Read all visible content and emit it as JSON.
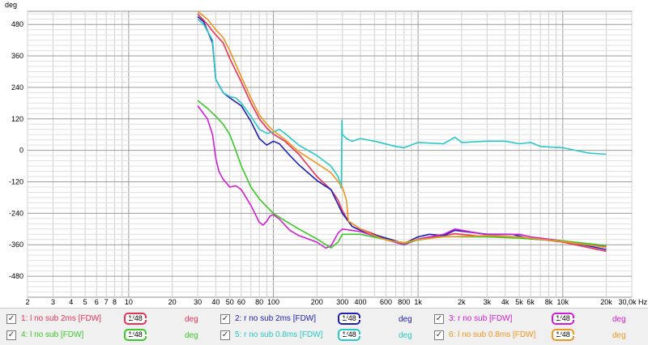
{
  "chart_data": {
    "type": "line",
    "ylabel": "deg",
    "xunit": "Hz",
    "xscale": "log",
    "xlim": [
      2,
      30000
    ],
    "ylim": [
      -560,
      530
    ],
    "yticks": [
      480,
      360,
      240,
      120,
      0,
      -120,
      -240,
      -360,
      -480
    ],
    "xticks": [
      {
        "v": 2,
        "label": "2"
      },
      {
        "v": 3,
        "label": "3"
      },
      {
        "v": 4,
        "label": "4"
      },
      {
        "v": 5,
        "label": "5"
      },
      {
        "v": 6,
        "label": "6"
      },
      {
        "v": 7,
        "label": "7"
      },
      {
        "v": 8,
        "label": "8"
      },
      {
        "v": 10,
        "label": "10"
      },
      {
        "v": 20,
        "label": "20"
      },
      {
        "v": 30,
        "label": "30"
      },
      {
        "v": 40,
        "label": "40"
      },
      {
        "v": 50,
        "label": "50"
      },
      {
        "v": 60,
        "label": "60"
      },
      {
        "v": 80,
        "label": "80"
      },
      {
        "v": 100,
        "label": "100"
      },
      {
        "v": 200,
        "label": "200"
      },
      {
        "v": 300,
        "label": "300"
      },
      {
        "v": 400,
        "label": "400"
      },
      {
        "v": 600,
        "label": "600"
      },
      {
        "v": 800,
        "label": "800"
      },
      {
        "v": 1000,
        "label": "1k"
      },
      {
        "v": 2000,
        "label": "2k"
      },
      {
        "v": 3000,
        "label": "3k"
      },
      {
        "v": 4000,
        "label": "4k"
      },
      {
        "v": 5000,
        "label": "5k"
      },
      {
        "v": 6000,
        "label": "6k"
      },
      {
        "v": 8000,
        "label": "8k"
      },
      {
        "v": 10000,
        "label": "10k"
      },
      {
        "v": 20000,
        "label": "20k"
      },
      {
        "v": 30000,
        "label": "30,0k Hz"
      }
    ],
    "grid": true,
    "series": [
      {
        "name": "1: l no sub 2ms [FDW]",
        "color": "#e8325a",
        "points": [
          [
            30,
            520
          ],
          [
            35,
            480
          ],
          [
            40,
            440
          ],
          [
            45,
            410
          ],
          [
            50,
            350
          ],
          [
            60,
            260
          ],
          [
            70,
            180
          ],
          [
            80,
            120
          ],
          [
            90,
            85
          ],
          [
            100,
            62
          ],
          [
            120,
            35
          ],
          [
            150,
            -15
          ],
          [
            200,
            -100
          ],
          [
            250,
            -150
          ],
          [
            280,
            -190
          ],
          [
            300,
            -230
          ],
          [
            330,
            -270
          ],
          [
            400,
            -300
          ],
          [
            500,
            -320
          ],
          [
            600,
            -340
          ],
          [
            800,
            -360
          ],
          [
            1000,
            -340
          ],
          [
            1500,
            -325
          ],
          [
            1800,
            -318
          ],
          [
            3000,
            -330
          ],
          [
            5000,
            -330
          ],
          [
            10000,
            -350
          ],
          [
            20000,
            -385
          ]
        ]
      },
      {
        "name": "2: r no sub 2ms [FDW]",
        "color": "#1e1eb4",
        "points": [
          [
            30,
            510
          ],
          [
            33,
            490
          ],
          [
            38,
            410
          ],
          [
            40,
            270
          ],
          [
            45,
            220
          ],
          [
            50,
            200
          ],
          [
            60,
            170
          ],
          [
            70,
            110
          ],
          [
            80,
            45
          ],
          [
            90,
            20
          ],
          [
            100,
            35
          ],
          [
            110,
            25
          ],
          [
            130,
            -20
          ],
          [
            150,
            -55
          ],
          [
            200,
            -115
          ],
          [
            250,
            -150
          ],
          [
            300,
            -240
          ],
          [
            350,
            -290
          ],
          [
            400,
            -305
          ],
          [
            500,
            -322
          ],
          [
            700,
            -345
          ],
          [
            800,
            -355
          ],
          [
            1000,
            -330
          ],
          [
            1200,
            -320
          ],
          [
            1500,
            -325
          ],
          [
            1800,
            -305
          ],
          [
            3000,
            -320
          ],
          [
            4500,
            -320
          ],
          [
            6000,
            -338
          ],
          [
            10000,
            -345
          ],
          [
            20000,
            -378
          ]
        ]
      },
      {
        "name": "3: r no sub [FDW]",
        "color": "#d21ed2",
        "points": [
          [
            30,
            170
          ],
          [
            35,
            120
          ],
          [
            38,
            60
          ],
          [
            40,
            -30
          ],
          [
            42,
            -80
          ],
          [
            45,
            -110
          ],
          [
            50,
            -140
          ],
          [
            55,
            -135
          ],
          [
            60,
            -150
          ],
          [
            70,
            -210
          ],
          [
            80,
            -275
          ],
          [
            85,
            -285
          ],
          [
            90,
            -270
          ],
          [
            95,
            -250
          ],
          [
            100,
            -245
          ],
          [
            110,
            -262
          ],
          [
            130,
            -305
          ],
          [
            150,
            -325
          ],
          [
            200,
            -350
          ],
          [
            230,
            -373
          ],
          [
            250,
            -365
          ],
          [
            280,
            -315
          ],
          [
            300,
            -300
          ],
          [
            400,
            -310
          ],
          [
            600,
            -340
          ],
          [
            800,
            -360
          ],
          [
            1000,
            -338
          ],
          [
            1500,
            -320
          ],
          [
            1800,
            -300
          ],
          [
            3000,
            -322
          ],
          [
            5000,
            -320
          ],
          [
            6000,
            -330
          ],
          [
            10000,
            -345
          ],
          [
            20000,
            -368
          ]
        ]
      },
      {
        "name": "4: l no sub [FDW]",
        "color": "#3cc828",
        "points": [
          [
            30,
            190
          ],
          [
            35,
            160
          ],
          [
            40,
            130
          ],
          [
            45,
            100
          ],
          [
            50,
            60
          ],
          [
            55,
            0
          ],
          [
            60,
            -60
          ],
          [
            70,
            -140
          ],
          [
            80,
            -185
          ],
          [
            90,
            -215
          ],
          [
            100,
            -240
          ],
          [
            120,
            -268
          ],
          [
            150,
            -300
          ],
          [
            200,
            -338
          ],
          [
            250,
            -372
          ],
          [
            280,
            -350
          ],
          [
            300,
            -320
          ],
          [
            400,
            -320
          ],
          [
            600,
            -340
          ],
          [
            800,
            -355
          ],
          [
            1000,
            -342
          ],
          [
            1500,
            -328
          ],
          [
            2000,
            -330
          ],
          [
            3000,
            -330
          ],
          [
            5000,
            -335
          ],
          [
            10000,
            -345
          ],
          [
            20000,
            -363
          ]
        ]
      },
      {
        "name": "5: r no sub 0.8ms [FDW]",
        "color": "#28c8c8",
        "points": [
          [
            30,
            500
          ],
          [
            33,
            480
          ],
          [
            38,
            420
          ],
          [
            40,
            270
          ],
          [
            45,
            220
          ],
          [
            50,
            205
          ],
          [
            55,
            200
          ],
          [
            60,
            180
          ],
          [
            70,
            130
          ],
          [
            80,
            80
          ],
          [
            90,
            65
          ],
          [
            100,
            70
          ],
          [
            110,
            80
          ],
          [
            120,
            65
          ],
          [
            150,
            20
          ],
          [
            200,
            -20
          ],
          [
            250,
            -60
          ],
          [
            280,
            -100
          ],
          [
            295,
            -145
          ],
          [
            298,
            115
          ],
          [
            300,
            60
          ],
          [
            320,
            45
          ],
          [
            350,
            35
          ],
          [
            400,
            45
          ],
          [
            500,
            35
          ],
          [
            700,
            15
          ],
          [
            800,
            10
          ],
          [
            1000,
            30
          ],
          [
            1500,
            25
          ],
          [
            1800,
            50
          ],
          [
            2000,
            30
          ],
          [
            3000,
            35
          ],
          [
            4000,
            35
          ],
          [
            5000,
            25
          ],
          [
            6000,
            30
          ],
          [
            7000,
            15
          ],
          [
            10000,
            10
          ],
          [
            15000,
            -10
          ],
          [
            20000,
            -15
          ]
        ]
      },
      {
        "name": "6: l no sub 0.8ms [FDW]",
        "color": "#f0961e",
        "points": [
          [
            30,
            530
          ],
          [
            35,
            500
          ],
          [
            40,
            460
          ],
          [
            45,
            430
          ],
          [
            50,
            380
          ],
          [
            60,
            280
          ],
          [
            70,
            200
          ],
          [
            80,
            135
          ],
          [
            90,
            100
          ],
          [
            100,
            75
          ],
          [
            120,
            42
          ],
          [
            150,
            -5
          ],
          [
            200,
            -50
          ],
          [
            250,
            -85
          ],
          [
            300,
            -140
          ],
          [
            320,
            -190
          ],
          [
            330,
            -270
          ],
          [
            400,
            -300
          ],
          [
            500,
            -325
          ],
          [
            600,
            -342
          ],
          [
            800,
            -352
          ],
          [
            1000,
            -340
          ],
          [
            1500,
            -330
          ],
          [
            2000,
            -328
          ],
          [
            3000,
            -325
          ],
          [
            5000,
            -330
          ],
          [
            10000,
            -348
          ],
          [
            20000,
            -370
          ]
        ]
      }
    ]
  },
  "legend": [
    {
      "name": "1: l no sub 2ms [FDW]",
      "smoothing": "1/48",
      "unit": "deg",
      "color": "#e8325a",
      "checked": true
    },
    {
      "name": "2: r no sub 2ms [FDW]",
      "smoothing": "1/48",
      "unit": "deg",
      "color": "#1e1eb4",
      "checked": true
    },
    {
      "name": "3: r no sub [FDW]",
      "smoothing": "1/48",
      "unit": "deg",
      "color": "#d21ed2",
      "checked": true
    },
    {
      "name": "4: l no sub [FDW]",
      "smoothing": "1/48",
      "unit": "deg",
      "color": "#3cc828",
      "checked": true
    },
    {
      "name": "5: r no sub 0.8ms [FDW]",
      "smoothing": "1/48",
      "unit": "deg",
      "color": "#28c8c8",
      "checked": true
    },
    {
      "name": "6: l no sub 0.8ms [FDW]",
      "smoothing": "1/48",
      "unit": "deg",
      "color": "#f0961e",
      "checked": true
    }
  ]
}
